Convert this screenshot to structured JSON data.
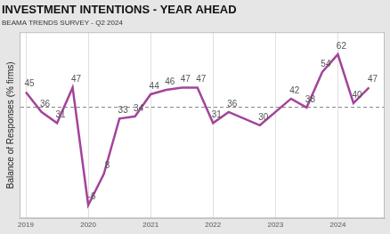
{
  "chart_data": {
    "type": "line",
    "title": "INVESTMENT INTENTIONS - YEAR AHEAD",
    "subtitle": "BEAMA TRENDS SURVEY - Q2 2024",
    "y_label": "Balance of Responses (% firms)",
    "x": [
      2019.0,
      2019.25,
      2019.5,
      2019.75,
      2020.0,
      2020.25,
      2020.5,
      2020.75,
      2021.0,
      2021.25,
      2021.5,
      2021.75,
      2022.0,
      2022.25,
      2022.75,
      2023.25,
      2023.5,
      2023.75,
      2024.0,
      2024.25,
      2024.5
    ],
    "values": [
      45,
      36,
      31,
      47,
      -6,
      8,
      33,
      34,
      44,
      46,
      47,
      47,
      31,
      36,
      30,
      42,
      38,
      54,
      62,
      40,
      47
    ],
    "color": "#a3449b",
    "xlim": [
      2018.9,
      2024.75
    ],
    "xticks": [
      2019,
      2020,
      2021,
      2022,
      2023,
      2024
    ],
    "ylim": [
      -12,
      72
    ],
    "yticks": [
      38
    ],
    "grid": true,
    "data_labels": true,
    "tick_labels": "x"
  }
}
